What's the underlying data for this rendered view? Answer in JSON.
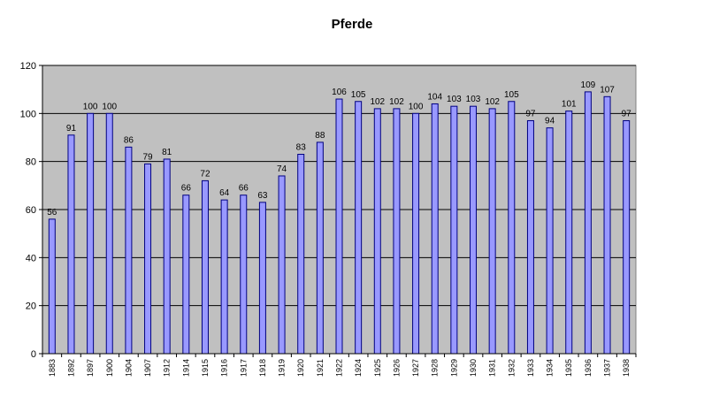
{
  "chart_data": {
    "type": "bar",
    "title": "Pferde",
    "xlabel": "",
    "ylabel": "",
    "categories": [
      "1883",
      "1892",
      "1897",
      "1900",
      "1904",
      "1907",
      "1912",
      "1914",
      "1915",
      "1916",
      "1917",
      "1918",
      "1919",
      "1920",
      "1921",
      "1922",
      "1924",
      "1925",
      "1926",
      "1927",
      "1928",
      "1929",
      "1930",
      "1931",
      "1932",
      "1933",
      "1934",
      "1935",
      "1936",
      "1937",
      "1938"
    ],
    "values": [
      56,
      91,
      100,
      100,
      86,
      79,
      81,
      66,
      72,
      64,
      66,
      63,
      74,
      83,
      88,
      106,
      105,
      102,
      102,
      100,
      104,
      103,
      103,
      102,
      105,
      97,
      94,
      101,
      109,
      107,
      97
    ],
    "ylim": [
      0,
      120
    ],
    "yticks": [
      0,
      20,
      40,
      60,
      80,
      100,
      120
    ],
    "grid": true,
    "legend": "none",
    "bar_color": "#9999ff",
    "bar_edge_color": "#000080",
    "plot_background": "#c0c0c0"
  }
}
